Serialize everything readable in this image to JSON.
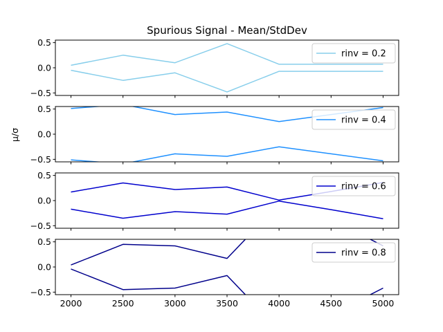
{
  "chart_data": {
    "type": "line",
    "title": "Spurious Signal - Mean/StdDev",
    "ylabel": "μ/σ",
    "xlabel": "",
    "x": [
      2000,
      2500,
      3000,
      3500,
      4000,
      4500,
      5000
    ],
    "xticks": [
      "2000",
      "2500",
      "3000",
      "3500",
      "4000",
      "4500",
      "5000"
    ],
    "xlim": [
      1850,
      5150
    ],
    "yticks": [
      "−0.5",
      "0.0",
      "0.5"
    ],
    "ytick_values": [
      -0.5,
      0.0,
      0.5
    ],
    "grid": false,
    "legend_position": "upper right",
    "panels": [
      {
        "legend": "rinv = 0.2",
        "color": "#87ceeb",
        "ylim": [
          -0.55,
          0.55
        ],
        "series": [
          {
            "values": [
              0.05,
              0.25,
              0.1,
              0.48,
              0.07,
              0.07,
              0.07
            ]
          },
          {
            "values": [
              -0.05,
              -0.25,
              -0.1,
              -0.48,
              -0.07,
              -0.07,
              -0.07
            ]
          }
        ]
      },
      {
        "legend": "rinv = 0.4",
        "color": "#1e90ff",
        "ylim": [
          -0.55,
          0.55
        ],
        "series": [
          {
            "values": [
              0.51,
              0.59,
              0.39,
              0.44,
              0.25,
              0.39,
              0.53
            ]
          },
          {
            "values": [
              -0.51,
              -0.59,
              -0.39,
              -0.44,
              -0.25,
              -0.39,
              -0.53
            ]
          }
        ]
      },
      {
        "legend": "rinv = 0.6",
        "color": "#0000cd",
        "ylim": [
          -0.55,
          0.55
        ],
        "series": [
          {
            "values": [
              0.17,
              0.35,
              0.22,
              0.27,
              0.01,
              0.18,
              0.36
            ]
          },
          {
            "values": [
              -0.17,
              -0.35,
              -0.22,
              -0.27,
              -0.01,
              -0.18,
              -0.36
            ]
          }
        ]
      },
      {
        "legend": "rinv = 0.8",
        "color": "#00008b",
        "ylim": [
          -0.55,
          0.55
        ],
        "series": [
          {
            "values": [
              0.04,
              0.45,
              0.42,
              0.17,
              1.25,
              0.95,
              0.42
            ]
          },
          {
            "values": [
              -0.04,
              -0.45,
              -0.42,
              -0.17,
              -1.25,
              -0.95,
              -0.42
            ]
          }
        ]
      }
    ]
  }
}
